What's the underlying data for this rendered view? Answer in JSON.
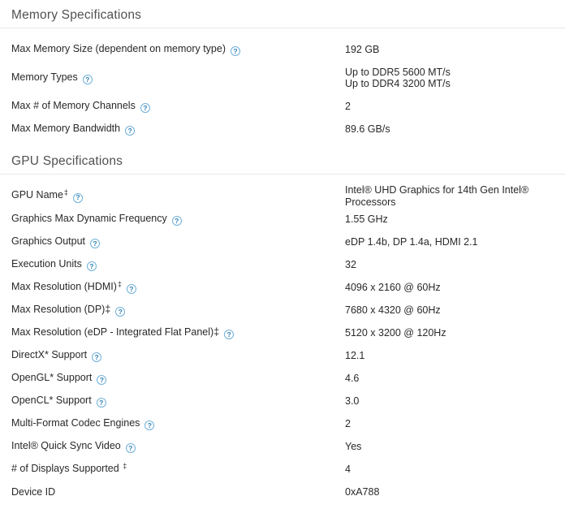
{
  "colors": {
    "background": "#ffffff",
    "header_text": "#515151",
    "body_text": "#282828",
    "divider": "#e9e9e9",
    "info_icon_border": "#6fb0d9",
    "info_icon_glyph": "#2e7fb5"
  },
  "icons": {
    "info_glyph": "?"
  },
  "sections": [
    {
      "title": "Memory Specifications",
      "rows": [
        {
          "label": "Max Memory Size (dependent on memory type)",
          "info": "?",
          "value": "192 GB"
        },
        {
          "label": "Memory Types",
          "info": "?",
          "value": "Up to DDR5 5600 MT/s",
          "value2": "Up to DDR4 3200 MT/s"
        },
        {
          "label": "Max # of Memory Channels",
          "info": "?",
          "value": "2"
        },
        {
          "label": "Max Memory Bandwidth",
          "info": "?",
          "value": "89.6 GB/s"
        }
      ]
    },
    {
      "title": "GPU Specifications",
      "rows": [
        {
          "label": "GPU Name",
          "sup": "‡",
          "info": "?",
          "value": "Intel® UHD Graphics for 14th Gen Intel® Processors"
        },
        {
          "label": "Graphics Max Dynamic Frequency",
          "info": "?",
          "value": "1.55 GHz"
        },
        {
          "label": "Graphics Output",
          "info": "?",
          "value": "eDP 1.4b, DP 1.4a, HDMI 2.1"
        },
        {
          "label": "Execution Units",
          "info": "?",
          "value": "32"
        },
        {
          "label": "Max Resolution (HDMI)",
          "sup": "‡",
          "info": "?",
          "value": "4096 x 2160 @ 60Hz"
        },
        {
          "label": "Max Resolution (DP)‡",
          "info": "?",
          "value": "7680 x 4320 @ 60Hz"
        },
        {
          "label": "Max Resolution (eDP - Integrated Flat Panel)‡",
          "info": "?",
          "value": "5120 x 3200 @ 120Hz"
        },
        {
          "label": "DirectX* Support",
          "info": "?",
          "value": "12.1"
        },
        {
          "label": "OpenGL* Support",
          "info": "?",
          "value": "4.6"
        },
        {
          "label": "OpenCL* Support",
          "info": "?",
          "value": "3.0"
        },
        {
          "label": "Multi-Format Codec Engines",
          "info": "?",
          "value": "2"
        },
        {
          "label": "Intel® Quick Sync Video",
          "info": "?",
          "value": "Yes"
        },
        {
          "label": "# of Displays Supported ",
          "sup": "‡",
          "value": "4"
        },
        {
          "label": "Device ID",
          "value": "0xA788"
        }
      ]
    }
  ]
}
